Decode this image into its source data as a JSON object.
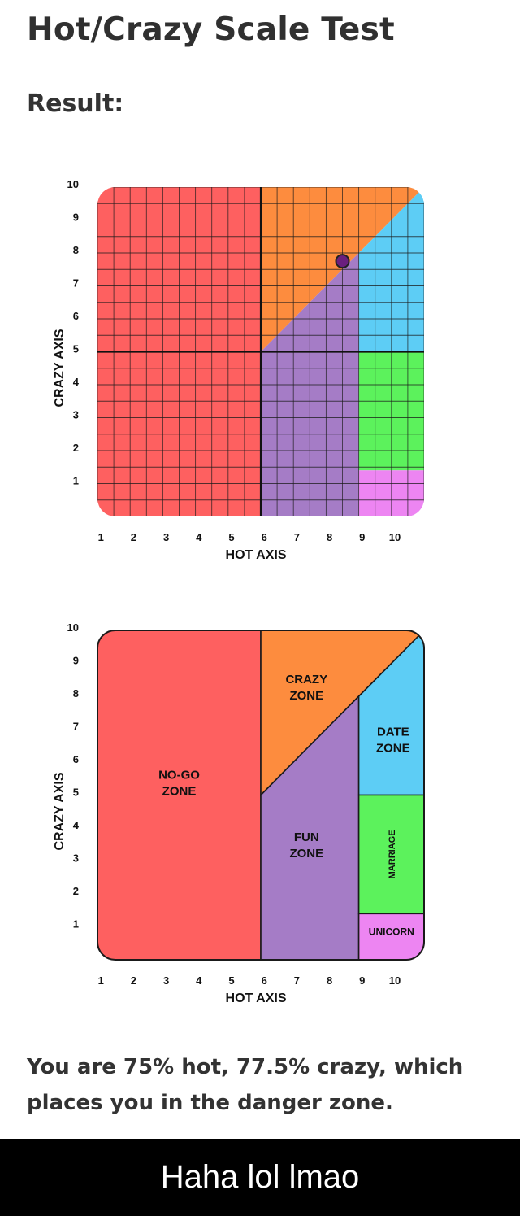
{
  "page": {
    "title": "Hot/Crazy Scale Test",
    "result_label": "Result:",
    "result_text": "You are 75% hot, 77.5% crazy, which places you in the danger zone.",
    "caption": "Haha lol lmao"
  },
  "colors": {
    "no_go": "#fe6060",
    "crazy": "#fd8c3e",
    "fun": "#a57cc6",
    "date": "#5dcdf5",
    "marriage": "#5cf25c",
    "unicorn": "#ed85f2",
    "point": "#6a1f7e"
  },
  "chart_data": [
    {
      "type": "scatter",
      "xlabel": "HOT AXIS",
      "ylabel": "CRAZY AXIS",
      "xlim": [
        0,
        10
      ],
      "ylim": [
        0,
        10
      ],
      "xticks": [
        "1",
        "2",
        "3",
        "4",
        "5",
        "6",
        "7",
        "8",
        "9",
        "10"
      ],
      "yticks": [
        "1",
        "2",
        "3",
        "4",
        "5",
        "6",
        "7",
        "8",
        "9",
        "10"
      ],
      "grid": true,
      "point": {
        "x": 7.5,
        "y": 7.75
      }
    },
    {
      "type": "area",
      "xlabel": "HOT AXIS",
      "ylabel": "CRAZY AXIS",
      "xlim": [
        0,
        10
      ],
      "ylim": [
        0,
        10
      ],
      "xticks": [
        "1",
        "2",
        "3",
        "4",
        "5",
        "6",
        "7",
        "8",
        "9",
        "10"
      ],
      "yticks": [
        "1",
        "2",
        "3",
        "4",
        "5",
        "6",
        "7",
        "8",
        "9",
        "10"
      ],
      "grid": false,
      "zones": [
        {
          "id": "no_go",
          "label": "NO-GO ZONE",
          "label_lines": [
            "NO-GO",
            "ZONE"
          ]
        },
        {
          "id": "crazy",
          "label": "CRAZY ZONE",
          "label_lines": [
            "CRAZY",
            "ZONE"
          ]
        },
        {
          "id": "fun",
          "label": "FUN ZONE",
          "label_lines": [
            "FUN",
            "ZONE"
          ]
        },
        {
          "id": "date",
          "label": "DATE ZONE",
          "label_lines": [
            "DATE",
            "ZONE"
          ]
        },
        {
          "id": "marriage",
          "label": "MARRIAGE",
          "label_lines": [
            "MARRIAGE"
          ]
        },
        {
          "id": "unicorn",
          "label": "UNICORN",
          "label_lines": [
            "UNICORN"
          ]
        }
      ]
    }
  ]
}
